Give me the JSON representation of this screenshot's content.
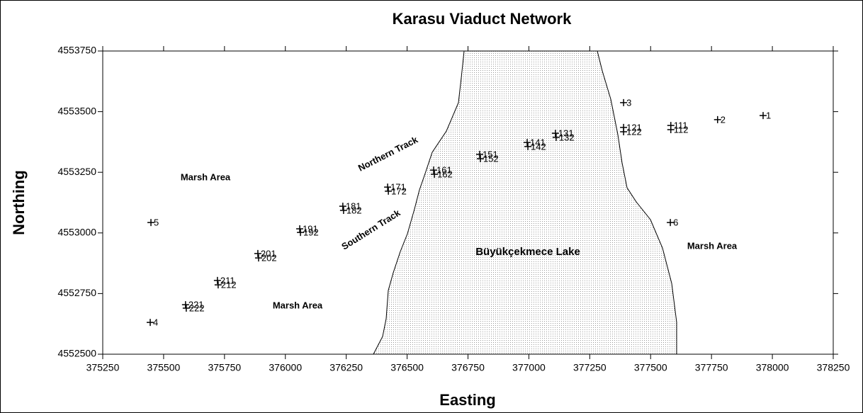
{
  "chart_data": {
    "type": "scatter",
    "title": "Karasu Viaduct Network",
    "xlabel": "Easting",
    "ylabel": "Northing",
    "xlim": [
      375250,
      378250
    ],
    "ylim": [
      4552500,
      4553750
    ],
    "xticks": [
      375250,
      375500,
      375750,
      376000,
      376250,
      376500,
      376750,
      377000,
      377250,
      377500,
      377750,
      378000,
      378250
    ],
    "yticks": [
      4552500,
      4552750,
      4553000,
      4553250,
      4553500,
      4553750
    ],
    "color": "#000000",
    "labels": [
      "1",
      "2",
      "3",
      "4",
      "5",
      "6",
      "111",
      "112",
      "121",
      "122",
      "131",
      "132",
      "141",
      "142",
      "151",
      "152",
      "161",
      "162",
      "171",
      "172",
      "181",
      "182",
      "191",
      "192",
      "201",
      "202",
      "211",
      "212",
      "221",
      "222"
    ],
    "x": [
      377962,
      377775,
      377389,
      375445,
      375448,
      377581,
      377583,
      377583,
      377389,
      377389,
      377109,
      377112,
      376993,
      376996,
      376798,
      376801,
      376609,
      376612,
      376420,
      376423,
      376236,
      376239,
      376059,
      376062,
      375887,
      375890,
      375721,
      375724,
      375590,
      375593
    ],
    "values": [
      4553484,
      4553467,
      4553537,
      4552631,
      4553043,
      4553043,
      4553443,
      4553426,
      4553435,
      4553417,
      4553411,
      4553394,
      4553373,
      4553356,
      4553324,
      4553306,
      4553259,
      4553242,
      4553189,
      4553172,
      4553110,
      4553093,
      4553017,
      4553002,
      4552915,
      4552897,
      4552804,
      4552786,
      4552704,
      4552690
    ],
    "annotations": [
      "Marsh Area",
      "Marsh Area",
      "Marsh Area",
      "Northern Track",
      "Southern Track",
      "Büyükçekmece Lake"
    ]
  }
}
